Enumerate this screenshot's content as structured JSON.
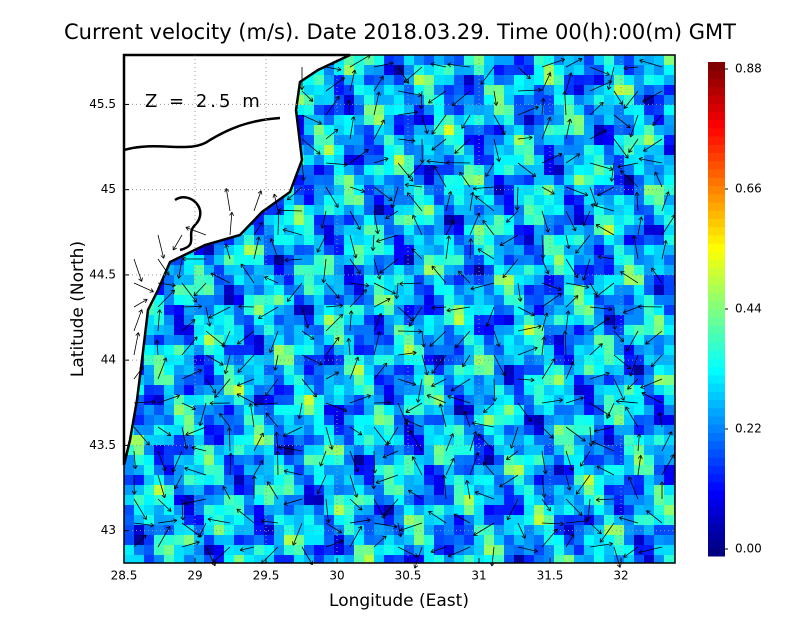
{
  "chart_data": {
    "type": "map",
    "title": "Current velocity (m/s). Date 2018.03.29. Time 00(h):00(m) GMT",
    "annotation": "Z = 2.5 m",
    "x_label": "Longitude (East)",
    "y_label": "Latitude (North)",
    "xlim": [
      28.5,
      32.38
    ],
    "xticks": [
      28.5,
      29,
      29.5,
      30,
      30.5,
      31,
      31.5,
      32
    ],
    "ylim": [
      42.81,
      45.79
    ],
    "yticks": [
      43,
      43.5,
      44,
      44.5,
      45,
      45.5
    ],
    "clim": [
      0,
      0.88
    ],
    "cticks": [
      {
        "value": 0,
        "label": "0.00"
      },
      0.22,
      0.44,
      0.66,
      0.88
    ],
    "grid": true
  }
}
